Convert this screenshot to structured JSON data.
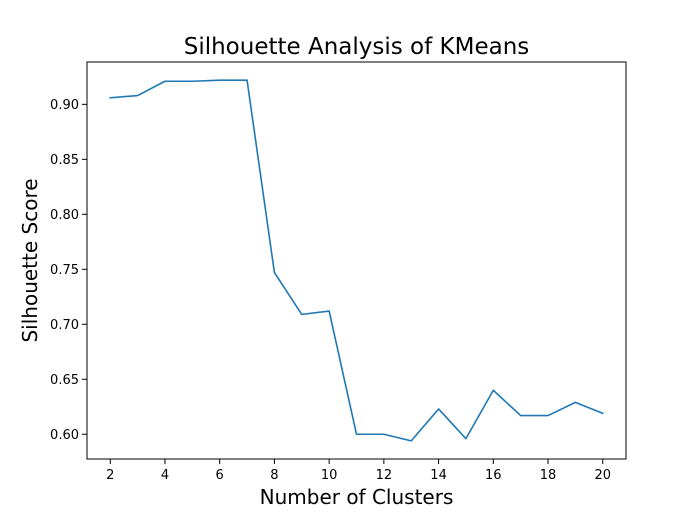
{
  "chart_data": {
    "type": "line",
    "title": "Silhouette Analysis of KMeans",
    "xlabel": "Number of Clusters",
    "ylabel": "Silhouette Score",
    "xlim": [
      1.15,
      20.85
    ],
    "ylim": [
      0.5775,
      0.9385
    ],
    "xticks": [
      2,
      4,
      6,
      8,
      10,
      12,
      14,
      16,
      18,
      20
    ],
    "yticks": [
      0.6,
      0.65,
      0.7,
      0.75,
      0.8,
      0.85,
      0.9
    ],
    "ytick_format": 2,
    "grid": false,
    "line_color": "#1f77b4",
    "series": [
      {
        "x": [
          2,
          3,
          4,
          5,
          6,
          7,
          8,
          9,
          10,
          11,
          12,
          13,
          14,
          15,
          16,
          17,
          18,
          19,
          20
        ],
        "values": [
          0.906,
          0.908,
          0.921,
          0.921,
          0.922,
          0.922,
          0.747,
          0.709,
          0.712,
          0.6,
          0.6,
          0.594,
          0.623,
          0.596,
          0.64,
          0.617,
          0.617,
          0.629,
          0.619
        ]
      }
    ]
  }
}
